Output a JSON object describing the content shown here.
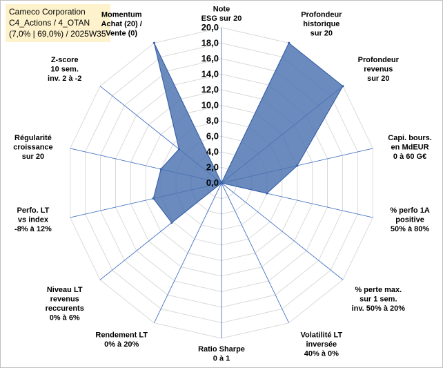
{
  "header": {
    "line1": "Cameco Corporation",
    "line2": "C4_Actions / 4_OTAN",
    "line3": "(7,0% | 69,0%) / 2025W35"
  },
  "chart_data": {
    "type": "radar",
    "rlim": [
      0,
      20
    ],
    "ticks": [
      "0,0",
      "2,0",
      "4,0",
      "6,0",
      "8,0",
      "10,0",
      "12,0",
      "14,0",
      "16,0",
      "18,0",
      "20,0"
    ],
    "grid": true,
    "colors": {
      "fill": "#4a72b0",
      "grid": "#d9d9d9",
      "spoke": "#4472c4"
    },
    "axes": [
      {
        "label": [
          "Note",
          "ESG sur 20"
        ],
        "value": 0
      },
      {
        "label": [
          "Profondeur",
          "historique",
          "sur 20"
        ],
        "value": 20
      },
      {
        "label": [
          "Profondeur",
          "revenus",
          "sur 20"
        ],
        "value": 20
      },
      {
        "label": [
          "Capi. bours.",
          "en MdEUR",
          "0 à 60 G€"
        ],
        "value": 10
      },
      {
        "label": [
          "% perfo 1A",
          "positive",
          "50% à 80%"
        ],
        "value": 6
      },
      {
        "label": [
          "% perte max.",
          "sur 1 sem.",
          "inv. 50% à 20%"
        ],
        "value": 0
      },
      {
        "label": [
          "Volatilité LT",
          "inversée",
          "40% à 0%"
        ],
        "value": 0
      },
      {
        "label": [
          "Ratio Sharpe",
          "0 à 1"
        ],
        "value": 0
      },
      {
        "label": [
          "Rendement LT",
          "0% à 20%"
        ],
        "value": 0
      },
      {
        "label": [
          "Niveau LT",
          "revenus",
          "reccurents",
          "0% à 6%"
        ],
        "value": 8.2
      },
      {
        "label": [
          "Perfo. LT",
          "vs index",
          "-8% à 12%"
        ],
        "value": 9
      },
      {
        "label": [
          "Régularité",
          "croissance",
          "sur 20"
        ],
        "value": 8
      },
      {
        "label": [
          "Z-score",
          "10 sem.",
          "inv. 2 à -2"
        ],
        "value": 7
      },
      {
        "label": [
          "Momentum",
          "Achat (20) /",
          "Vente (0)"
        ],
        "value": 20
      }
    ]
  }
}
